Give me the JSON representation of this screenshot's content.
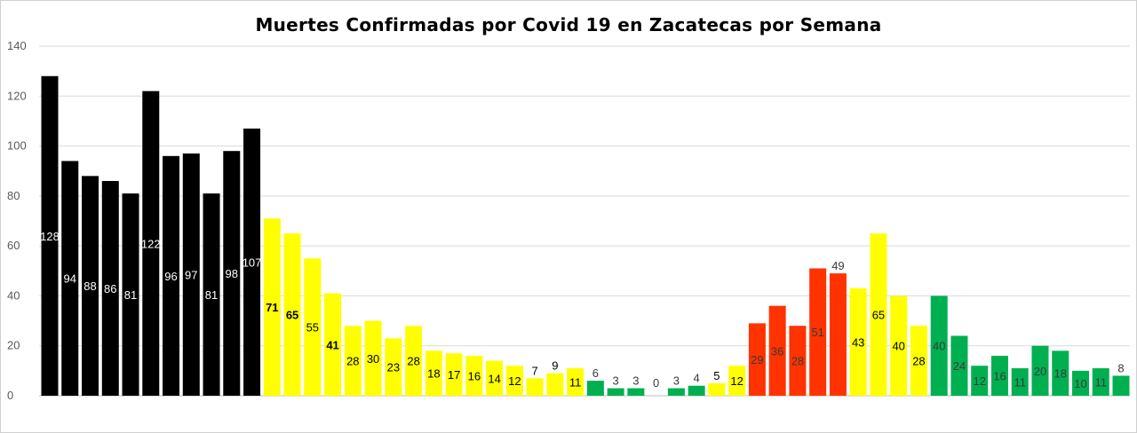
{
  "chart_data": {
    "type": "bar",
    "title": "Muertes Confirmadas  por  Covid 19  en Zacatecas por Semana",
    "xlabel": "",
    "ylabel": "",
    "ylim": [
      0,
      140
    ],
    "yticks": [
      "0",
      "20",
      "40",
      "60",
      "80",
      "100",
      "120",
      "140"
    ],
    "grid": true,
    "legend": "none",
    "values": [
      128,
      94,
      88,
      86,
      81,
      122,
      96,
      97,
      81,
      98,
      107,
      71,
      65,
      55,
      41,
      28,
      30,
      23,
      28,
      18,
      17,
      16,
      14,
      12,
      7,
      9,
      11,
      6,
      3,
      3,
      0,
      3,
      4,
      5,
      12,
      29,
      36,
      28,
      51,
      49,
      43,
      65,
      40,
      28,
      40,
      24,
      12,
      16,
      11,
      20,
      18,
      10,
      11,
      8
    ],
    "bar_colors": [
      "#000000",
      "#000000",
      "#000000",
      "#000000",
      "#000000",
      "#000000",
      "#000000",
      "#000000",
      "#000000",
      "#000000",
      "#000000",
      "#ffff00",
      "#ffff00",
      "#ffff00",
      "#ffff00",
      "#ffff00",
      "#ffff00",
      "#ffff00",
      "#ffff00",
      "#ffff00",
      "#ffff00",
      "#ffff00",
      "#ffff00",
      "#ffff00",
      "#ffff00",
      "#ffff00",
      "#ffff00",
      "#00b050",
      "#00b050",
      "#00b050",
      "#00b050",
      "#00b050",
      "#00b050",
      "#ffff00",
      "#ffff00",
      "#ff3300",
      "#ff3300",
      "#ff3300",
      "#ff3300",
      "#ff3300",
      "#ffff00",
      "#ffff00",
      "#ffff00",
      "#ffff00",
      "#00b050",
      "#00b050",
      "#00b050",
      "#00b050",
      "#00b050",
      "#00b050",
      "#00b050",
      "#00b050",
      "#00b050",
      "#00b050"
    ],
    "colors": {
      "grid": "#d9d9d9",
      "axis": "#bfbfbf",
      "tick_text": "#595959"
    }
  }
}
